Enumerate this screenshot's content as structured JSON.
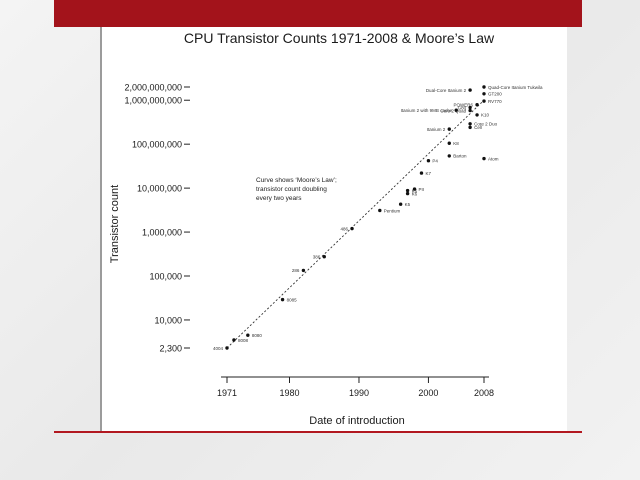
{
  "slide": {
    "accent_color": "#a3131b",
    "panel_color": "#ffffff",
    "background_color": "#ececec"
  },
  "chart_data": {
    "type": "scatter",
    "title": "CPU Transistor Counts 1971-2008 & Moore’s Law",
    "xlabel": "Date of introduction",
    "ylabel": "Transistor count",
    "xscale": "linear",
    "yscale": "log",
    "xlim": [
      1971,
      2008
    ],
    "ylim": [
      2300,
      2000000000
    ],
    "x_ticks": [
      1971,
      1980,
      1990,
      2000,
      2008
    ],
    "y_ticks": [
      {
        "value": 2000000000,
        "label": "2,000,000,000"
      },
      {
        "value": 1000000000,
        "label": "1,000,000,000"
      },
      {
        "value": 100000000,
        "label": "100,000,000"
      },
      {
        "value": 10000000,
        "label": "10,000,000"
      },
      {
        "value": 1000000,
        "label": "1,000,000"
      },
      {
        "value": 100000,
        "label": "100,000"
      },
      {
        "value": 10000,
        "label": "10,000"
      },
      {
        "value": 2300,
        "label": "2,300"
      }
    ],
    "grid": false,
    "annotation": [
      "Curve shows ‘Moore’s Law’;",
      "transistor count doubling",
      "every two years"
    ],
    "trend_line": {
      "name": "Moore’s Law",
      "points": [
        [
          1971,
          2300
        ],
        [
          2008,
          1000000000
        ]
      ]
    },
    "points": [
      {
        "label": "4004",
        "x": 1971,
        "y": 2300
      },
      {
        "label": "8008",
        "x": 1972,
        "y": 3500
      },
      {
        "label": "8080",
        "x": 1974,
        "y": 4500
      },
      {
        "label": "8085",
        "x": 1979,
        "y": 29000
      },
      {
        "label": "286",
        "x": 1982,
        "y": 134000
      },
      {
        "label": "386",
        "x": 1985,
        "y": 275000
      },
      {
        "label": "486",
        "x": 1989,
        "y": 1200000
      },
      {
        "label": "Pentium",
        "x": 1993,
        "y": 3100000
      },
      {
        "label": "K5",
        "x": 1996,
        "y": 4300000
      },
      {
        "label": "K6",
        "x": 1997,
        "y": 8800000
      },
      {
        "label": "K6",
        "x": 1997,
        "y": 7500000
      },
      {
        "label": "PII",
        "x": 1998,
        "y": 9500000
      },
      {
        "label": "K7",
        "x": 1999,
        "y": 22000000
      },
      {
        "label": "P4",
        "x": 2000,
        "y": 42000000
      },
      {
        "label": "K8",
        "x": 2003,
        "y": 105000000
      },
      {
        "label": "Barton",
        "x": 2003,
        "y": 54000000
      },
      {
        "label": "Atom",
        "x": 2008,
        "y": 47000000
      },
      {
        "label": "Itanium 2",
        "x": 2003,
        "y": 220000000
      },
      {
        "label": "Core 2 Duo",
        "x": 2006,
        "y": 291000000
      },
      {
        "label": "Cell",
        "x": 2006,
        "y": 241000000
      },
      {
        "label": "Core 2 Quad",
        "x": 2006,
        "y": 582000000
      },
      {
        "label": "K10",
        "x": 2007,
        "y": 463000000
      },
      {
        "label": "Itanium 2 with 9MB cache",
        "x": 2004,
        "y": 592000000
      },
      {
        "label": "POWER6",
        "x": 2007,
        "y": 789000000
      },
      {
        "label": "G80",
        "x": 2006,
        "y": 681000000
      },
      {
        "label": "RV770",
        "x": 2008,
        "y": 956000000
      },
      {
        "label": "GT200",
        "x": 2008,
        "y": 1400000000
      },
      {
        "label": "Dual-Core Itanium 2",
        "x": 2006,
        "y": 1700000000
      },
      {
        "label": "Quad-Core Itanium Tukwila",
        "x": 2008,
        "y": 2000000000
      }
    ]
  }
}
